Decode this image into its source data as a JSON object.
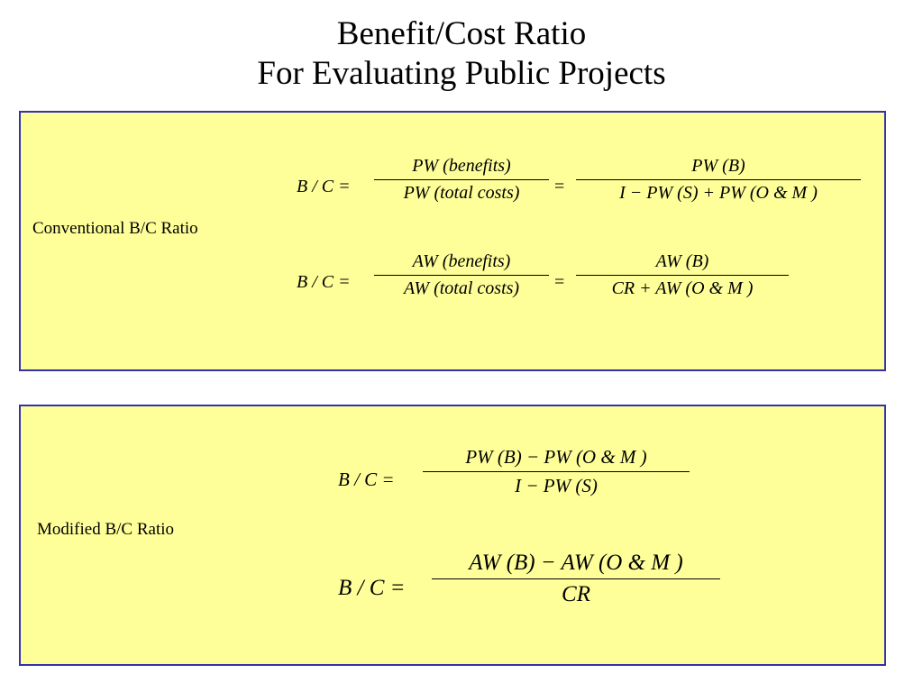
{
  "title": {
    "line1": "Benefit/Cost Ratio",
    "line2": "For Evaluating Public Projects"
  },
  "conventional": {
    "label": "Conventional B/C Ratio",
    "eq1": {
      "lhs": "B / C =",
      "frac1_num": "PW (benefits)",
      "frac1_den": "PW (total costs)",
      "equals": "=",
      "frac2_num": "PW (B)",
      "frac2_den": "I − PW (S) + PW (O & M )"
    },
    "eq2": {
      "lhs": "B / C =",
      "frac1_num": "AW (benefits)",
      "frac1_den": "AW (total costs)",
      "equals": "=",
      "frac2_num": "AW (B)",
      "frac2_den": "CR + AW (O & M )"
    }
  },
  "modified": {
    "label": "Modified B/C Ratio",
    "eq1": {
      "lhs": "B / C =",
      "num": "PW (B) −  PW (O & M )",
      "den": "I − PW (S)"
    },
    "eq2": {
      "lhs": "B / C  =",
      "num": "AW (B) − AW (O & M )",
      "den": "CR"
    }
  },
  "colors": {
    "panel_fill": "#ffff99",
    "panel_border": "#3333aa"
  }
}
